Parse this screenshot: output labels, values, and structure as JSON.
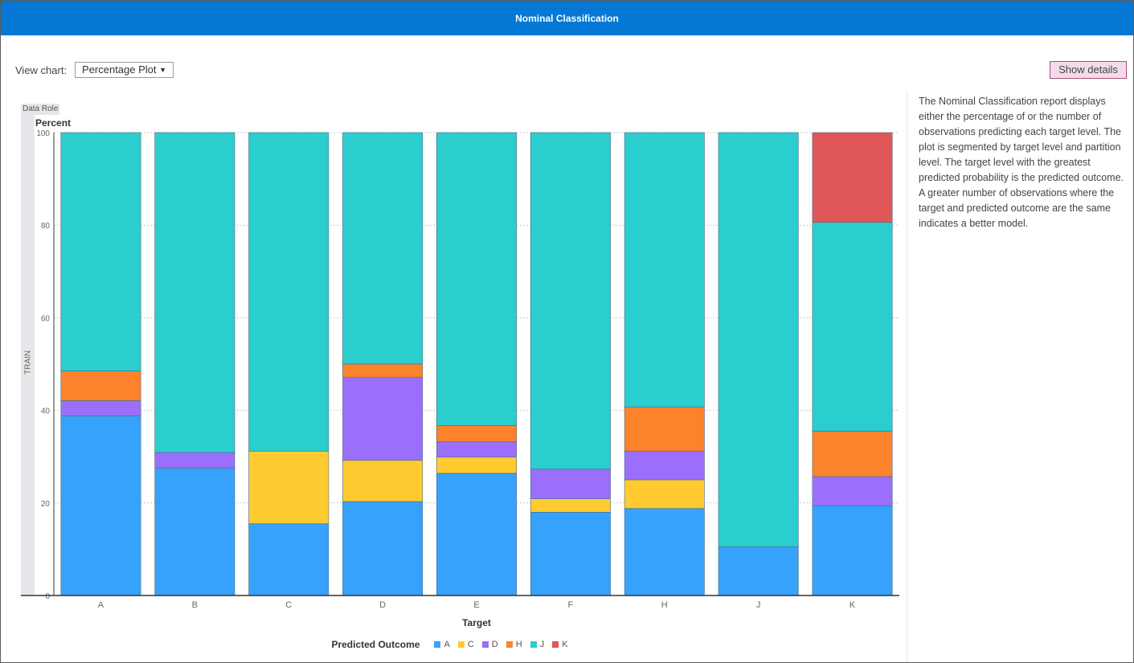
{
  "header": {
    "title": "Nominal Classification"
  },
  "controls": {
    "view_chart_label": "View chart:",
    "view_chart_value": "Percentage Plot",
    "show_details_label": "Show details"
  },
  "description": "The Nominal Classification report displays either the percentage of or the number of observations predicting each target level. The plot is segmented by target level and partition level. The target level with the greatest predicted probability is the predicted outcome. A greater number of observations where the target and predicted outcome are the same indicates a better model.",
  "panel": {
    "data_role_label": "Data Role",
    "partition_label": "TRAIN"
  },
  "chart_data": {
    "type": "bar",
    "stacked": true,
    "title": "",
    "ylabel": "Percent",
    "xlabel": "Target",
    "ylim": [
      0,
      100
    ],
    "yticks": [
      0,
      20,
      40,
      60,
      80,
      100
    ],
    "grid": true,
    "legend_title": "Predicted Outcome",
    "legend_position": "bottom",
    "categories": [
      "A",
      "B",
      "C",
      "D",
      "E",
      "F",
      "H",
      "J",
      "K"
    ],
    "series": [
      {
        "name": "A",
        "color": "#36a2fb",
        "values": [
          38.8,
          27.5,
          15.5,
          20.3,
          26.4,
          18.0,
          18.8,
          10.5,
          19.4
        ]
      },
      {
        "name": "C",
        "color": "#ffcb30",
        "values": [
          0,
          0,
          15.7,
          8.9,
          3.5,
          2.9,
          6.2,
          0,
          0
        ]
      },
      {
        "name": "D",
        "color": "#9b6ffc",
        "values": [
          3.3,
          3.4,
          0,
          17.9,
          3.3,
          6.4,
          6.2,
          0,
          6.3
        ]
      },
      {
        "name": "H",
        "color": "#fd822c",
        "values": [
          6.4,
          0,
          0,
          2.9,
          3.5,
          0,
          9.5,
          0,
          9.8
        ]
      },
      {
        "name": "J",
        "color": "#2bcece",
        "values": [
          51.5,
          69.1,
          68.8,
          50.0,
          63.3,
          72.7,
          59.3,
          89.5,
          45.1
        ]
      },
      {
        "name": "K",
        "color": "#e05757",
        "values": [
          0,
          0,
          0,
          0,
          0,
          0,
          0,
          0,
          19.4
        ]
      }
    ]
  }
}
